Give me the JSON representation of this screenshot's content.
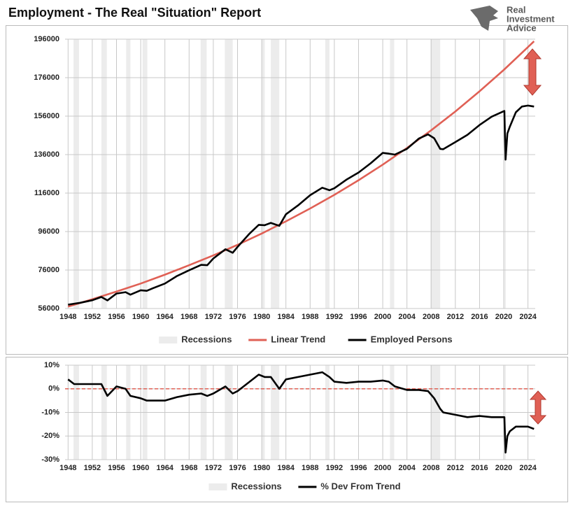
{
  "logo": {
    "lines": [
      "Real",
      "Investment",
      "Advice"
    ]
  },
  "chart_data": [
    {
      "type": "line",
      "title": "Employment - The Real \"Situation\" Report",
      "xlim": [
        1947.5,
        2025.2
      ],
      "xticks": [
        1948,
        1952,
        1956,
        1960,
        1964,
        1968,
        1972,
        1976,
        1980,
        1984,
        1988,
        1992,
        1996,
        2000,
        2004,
        2008,
        2012,
        2016,
        2020,
        2024
      ],
      "ylim": [
        56000,
        196000
      ],
      "yticks": [
        56000,
        76000,
        96000,
        116000,
        136000,
        156000,
        176000,
        196000
      ],
      "grid": true,
      "recessions": {
        "name": "Recessions",
        "color": "#ececec",
        "periods": [
          [
            1948.9,
            1949.8
          ],
          [
            1953.5,
            1954.4
          ],
          [
            1957.6,
            1958.3
          ],
          [
            1960.3,
            1961.1
          ],
          [
            1969.9,
            1970.9
          ],
          [
            1973.9,
            1975.2
          ],
          [
            1980.0,
            1980.5
          ],
          [
            1981.5,
            1982.9
          ],
          [
            1990.5,
            1991.2
          ],
          [
            2001.2,
            2001.9
          ],
          [
            2007.9,
            2009.5
          ],
          [
            2020.1,
            2020.3
          ]
        ]
      },
      "series": [
        {
          "name": "Linear Trend",
          "color": "#e06055",
          "x": [
            1948,
            1952,
            1956,
            1960,
            1964,
            1968,
            1972,
            1976,
            1980,
            1984,
            1988,
            1992,
            1996,
            2000,
            2004,
            2008,
            2012,
            2016,
            2020,
            2024,
            2025
          ],
          "values": [
            57000,
            60800,
            64800,
            69000,
            73600,
            78500,
            83600,
            89100,
            95000,
            101300,
            108000,
            115100,
            122700,
            130800,
            139400,
            148600,
            158400,
            168900,
            180000,
            191900,
            194900
          ]
        },
        {
          "name": "Employed Persons",
          "color": "#000000",
          "x": [
            1948,
            1949,
            1950,
            1952,
            1953.5,
            1954.5,
            1956,
            1957.5,
            1958.3,
            1960,
            1961,
            1962,
            1964,
            1966,
            1968,
            1970,
            1971,
            1972,
            1974,
            1975.2,
            1976,
            1978,
            1979.5,
            1980.5,
            1981.5,
            1982.9,
            1984,
            1986,
            1988,
            1990,
            1991.2,
            1992,
            1994,
            1996,
            1998,
            2000,
            2001,
            2002,
            2004,
            2006,
            2007.5,
            2008.5,
            2009.5,
            2010,
            2012,
            2014,
            2016,
            2018,
            2020.1,
            2020.3,
            2020.6,
            2021,
            2022,
            2023,
            2024,
            2025
          ],
          "values": [
            58000,
            58500,
            59000,
            60300,
            62000,
            60200,
            63800,
            64500,
            63200,
            65500,
            65200,
            66500,
            69000,
            72900,
            75900,
            78700,
            78500,
            82000,
            86800,
            85000,
            88000,
            95000,
            99500,
            99300,
            100500,
            99000,
            105000,
            109600,
            114900,
            118800,
            117500,
            118500,
            123000,
            126700,
            131500,
            136900,
            136500,
            136000,
            139000,
            144400,
            146500,
            144500,
            139000,
            138800,
            142500,
            146300,
            151400,
            155700,
            158700,
            133400,
            147000,
            150500,
            158000,
            161000,
            161500,
            161000
          ]
        }
      ]
    },
    {
      "type": "line",
      "xlim": [
        1947.5,
        2025.2
      ],
      "xticks": [
        1948,
        1952,
        1956,
        1960,
        1964,
        1968,
        1972,
        1976,
        1980,
        1984,
        1988,
        1992,
        1996,
        2000,
        2004,
        2008,
        2012,
        2016,
        2020,
        2024
      ],
      "ylim": [
        -30,
        10
      ],
      "yticks": [
        {
          "value": -30,
          "label": "-30%"
        },
        {
          "value": -20,
          "label": "-20%"
        },
        {
          "value": -10,
          "label": "-10%"
        },
        {
          "value": 0,
          "label": "0%"
        },
        {
          "value": 10,
          "label": "10%"
        }
      ],
      "grid": true,
      "reference_line": {
        "value": 0,
        "color": "#e06055"
      },
      "recessions": {
        "name": "Recessions",
        "color": "#ececec",
        "periods": [
          [
            1948.9,
            1949.8
          ],
          [
            1953.5,
            1954.4
          ],
          [
            1957.6,
            1958.3
          ],
          [
            1960.3,
            1961.1
          ],
          [
            1969.9,
            1970.9
          ],
          [
            1973.9,
            1975.2
          ],
          [
            1980.0,
            1980.5
          ],
          [
            1981.5,
            1982.9
          ],
          [
            1990.5,
            1991.2
          ],
          [
            2001.2,
            2001.9
          ],
          [
            2007.9,
            2009.5
          ],
          [
            2020.1,
            2020.3
          ]
        ]
      },
      "series": [
        {
          "name": "% Dev From Trend",
          "color": "#000000",
          "x": [
            1948,
            1949,
            1950,
            1952,
            1953.5,
            1954.5,
            1956,
            1957.5,
            1958.3,
            1960,
            1961,
            1962,
            1964,
            1966,
            1968,
            1970,
            1971,
            1972,
            1974,
            1975.2,
            1976,
            1978,
            1979.5,
            1980.5,
            1981.5,
            1982.9,
            1984,
            1986,
            1988,
            1990,
            1991.2,
            1992,
            1994,
            1996,
            1998,
            2000,
            2001,
            2002,
            2004,
            2006,
            2007.5,
            2008.5,
            2009.5,
            2010,
            2012,
            2014,
            2016,
            2018,
            2020.1,
            2020.3,
            2020.6,
            2021,
            2022,
            2023,
            2024,
            2025
          ],
          "values": [
            4,
            2,
            2,
            2,
            2,
            -3,
            1,
            0,
            -3,
            -4,
            -5,
            -5,
            -5,
            -3.5,
            -2.5,
            -2,
            -3,
            -2,
            1,
            -2,
            -1,
            3,
            6,
            5,
            5,
            0,
            4,
            5,
            6,
            7,
            5,
            3,
            2.5,
            3,
            3,
            3.5,
            3,
            1,
            -0.5,
            -0.5,
            -1,
            -4,
            -8.5,
            -10,
            -11,
            -12,
            -11.5,
            -12,
            -12,
            -27,
            -20,
            -18,
            -16,
            -16,
            -16,
            -17
          ]
        }
      ]
    }
  ]
}
